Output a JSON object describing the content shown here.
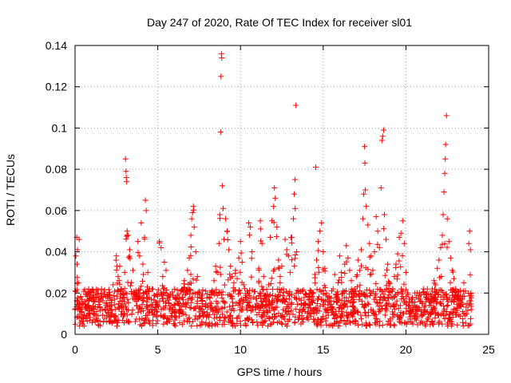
{
  "chart_data": {
    "type": "scatter",
    "title": "Day 247 of 2020, Rate Of TEC Index for receiver sl01",
    "xlabel": "GPS time / hours",
    "ylabel": "ROTI / TECUs",
    "xlim": [
      0,
      25
    ],
    "ylim": [
      0,
      0.14
    ],
    "xticks": [
      0,
      5,
      10,
      15,
      20,
      25
    ],
    "xtick_labels": [
      "0",
      "5",
      "10",
      "15",
      "20",
      "25"
    ],
    "yticks": [
      0,
      0.02,
      0.04,
      0.06,
      0.08,
      0.1,
      0.12,
      0.14
    ],
    "ytick_labels": [
      "0",
      "0.02",
      "0.04",
      "0.06",
      "0.08",
      "0.1",
      "0.12",
      "0.14"
    ],
    "grid": true,
    "marker": "+",
    "color": "#ff0000",
    "series": [
      {
        "name": "ROTI",
        "points": [
          [
            0.0,
            0.012
          ],
          [
            0.05,
            0.038
          ],
          [
            0.1,
            0.047
          ],
          [
            0.12,
            0.034
          ],
          [
            0.15,
            0.041
          ],
          [
            0.2,
            0.025
          ],
          [
            0.25,
            0.046
          ],
          [
            0.3,
            0.015
          ],
          [
            0.4,
            0.011
          ],
          [
            0.5,
            0.008
          ],
          [
            0.6,
            0.013
          ],
          [
            0.7,
            0.009
          ],
          [
            0.8,
            0.014
          ],
          [
            0.9,
            0.01
          ],
          [
            1.0,
            0.012
          ],
          [
            1.1,
            0.007
          ],
          [
            1.2,
            0.016
          ],
          [
            1.3,
            0.011
          ],
          [
            1.4,
            0.009
          ],
          [
            1.5,
            0.013
          ],
          [
            1.6,
            0.022
          ],
          [
            1.7,
            0.018
          ],
          [
            1.8,
            0.012
          ],
          [
            1.9,
            0.015
          ],
          [
            2.0,
            0.01
          ],
          [
            2.1,
            0.019
          ],
          [
            2.2,
            0.014
          ],
          [
            2.3,
            0.024
          ],
          [
            2.4,
            0.017
          ],
          [
            2.5,
            0.038
          ],
          [
            2.6,
            0.028
          ],
          [
            2.7,
            0.033
          ],
          [
            2.8,
            0.022
          ],
          [
            2.9,
            0.018
          ],
          [
            3.0,
            0.03
          ],
          [
            3.05,
            0.085
          ],
          [
            3.08,
            0.079
          ],
          [
            3.1,
            0.076
          ],
          [
            3.12,
            0.074
          ],
          [
            3.15,
            0.05
          ],
          [
            3.2,
            0.048
          ],
          [
            3.3,
            0.041
          ],
          [
            3.4,
            0.025
          ],
          [
            3.5,
            0.031
          ],
          [
            3.6,
            0.02
          ],
          [
            3.7,
            0.016
          ],
          [
            3.8,
            0.045
          ],
          [
            3.9,
            0.038
          ],
          [
            4.0,
            0.054
          ],
          [
            4.1,
            0.034
          ],
          [
            4.2,
            0.047
          ],
          [
            4.25,
            0.065
          ],
          [
            4.3,
            0.06
          ],
          [
            4.4,
            0.03
          ],
          [
            4.5,
            0.022
          ],
          [
            4.6,
            0.017
          ],
          [
            4.7,
            0.012
          ],
          [
            4.8,
            0.01
          ],
          [
            4.9,
            0.013
          ],
          [
            5.0,
            0.014
          ],
          [
            5.1,
            0.045
          ],
          [
            5.2,
            0.042
          ],
          [
            5.3,
            0.028
          ],
          [
            5.4,
            0.035
          ],
          [
            5.5,
            0.031
          ],
          [
            5.6,
            0.019
          ],
          [
            5.7,
            0.012
          ],
          [
            5.8,
            0.009
          ],
          [
            5.9,
            0.013
          ],
          [
            6.0,
            0.011
          ],
          [
            6.1,
            0.008
          ],
          [
            6.2,
            0.015
          ],
          [
            6.3,
            0.012
          ],
          [
            6.4,
            0.021
          ],
          [
            6.5,
            0.018
          ],
          [
            6.6,
            0.026
          ],
          [
            6.7,
            0.015
          ],
          [
            6.8,
            0.031
          ],
          [
            6.9,
            0.037
          ],
          [
            7.0,
            0.048
          ],
          [
            7.05,
            0.056
          ],
          [
            7.1,
            0.059
          ],
          [
            7.15,
            0.062
          ],
          [
            7.2,
            0.052
          ],
          [
            7.3,
            0.04
          ],
          [
            7.4,
            0.028
          ],
          [
            7.5,
            0.02
          ],
          [
            7.6,
            0.012
          ],
          [
            7.7,
            0.016
          ],
          [
            7.8,
            0.011
          ],
          [
            7.9,
            0.014
          ],
          [
            8.0,
            0.009
          ],
          [
            8.1,
            0.018
          ],
          [
            8.2,
            0.013
          ],
          [
            8.3,
            0.021
          ],
          [
            8.4,
            0.026
          ],
          [
            8.5,
            0.033
          ],
          [
            8.6,
            0.03
          ],
          [
            8.7,
            0.044
          ],
          [
            8.75,
            0.058
          ],
          [
            8.8,
            0.098
          ],
          [
            8.82,
            0.125
          ],
          [
            8.85,
            0.136
          ],
          [
            8.87,
            0.134
          ],
          [
            8.9,
            0.072
          ],
          [
            8.95,
            0.061
          ],
          [
            9.0,
            0.046
          ],
          [
            9.1,
            0.056
          ],
          [
            9.2,
            0.05
          ],
          [
            9.3,
            0.041
          ],
          [
            9.4,
            0.033
          ],
          [
            9.5,
            0.028
          ],
          [
            9.6,
            0.025
          ],
          [
            9.7,
            0.031
          ],
          [
            9.8,
            0.027
          ],
          [
            9.9,
            0.037
          ],
          [
            10.0,
            0.045
          ],
          [
            10.1,
            0.035
          ],
          [
            10.2,
            0.024
          ],
          [
            10.3,
            0.018
          ],
          [
            10.4,
            0.021
          ],
          [
            10.5,
            0.054
          ],
          [
            10.6,
            0.052
          ],
          [
            10.7,
            0.04
          ],
          [
            10.8,
            0.018
          ],
          [
            10.9,
            0.012
          ],
          [
            11.0,
            0.015
          ],
          [
            11.1,
            0.032
          ],
          [
            11.2,
            0.055
          ],
          [
            11.3,
            0.044
          ],
          [
            11.4,
            0.028
          ],
          [
            11.5,
            0.019
          ],
          [
            11.6,
            0.017
          ],
          [
            11.7,
            0.024
          ],
          [
            11.8,
            0.047
          ],
          [
            11.9,
            0.055
          ],
          [
            12.0,
            0.062
          ],
          [
            12.05,
            0.071
          ],
          [
            12.1,
            0.066
          ],
          [
            12.2,
            0.052
          ],
          [
            12.3,
            0.036
          ],
          [
            12.4,
            0.028
          ],
          [
            12.5,
            0.033
          ],
          [
            12.6,
            0.022
          ],
          [
            12.7,
            0.046
          ],
          [
            12.8,
            0.041
          ],
          [
            12.9,
            0.038
          ],
          [
            13.0,
            0.03
          ],
          [
            13.1,
            0.047
          ],
          [
            13.2,
            0.056
          ],
          [
            13.25,
            0.068
          ],
          [
            13.3,
            0.075
          ],
          [
            13.35,
            0.111
          ],
          [
            13.4,
            0.04
          ],
          [
            13.5,
            0.02
          ],
          [
            13.6,
            0.012
          ],
          [
            13.7,
            0.009
          ],
          [
            13.8,
            0.014
          ],
          [
            13.9,
            0.011
          ],
          [
            14.0,
            0.008
          ],
          [
            14.1,
            0.013
          ],
          [
            14.2,
            0.01
          ],
          [
            14.3,
            0.016
          ],
          [
            14.4,
            0.012
          ],
          [
            14.5,
            0.029
          ],
          [
            14.55,
            0.081
          ],
          [
            14.6,
            0.036
          ],
          [
            14.7,
            0.045
          ],
          [
            14.8,
            0.05
          ],
          [
            14.9,
            0.054
          ],
          [
            15.0,
            0.04
          ],
          [
            15.1,
            0.032
          ],
          [
            15.2,
            0.02
          ],
          [
            15.3,
            0.012
          ],
          [
            15.4,
            0.016
          ],
          [
            15.5,
            0.013
          ],
          [
            15.6,
            0.022
          ],
          [
            15.7,
            0.029
          ],
          [
            15.8,
            0.019
          ],
          [
            15.9,
            0.025
          ],
          [
            16.0,
            0.038
          ],
          [
            16.1,
            0.03
          ],
          [
            16.2,
            0.021
          ],
          [
            16.3,
            0.034
          ],
          [
            16.4,
            0.043
          ],
          [
            16.5,
            0.037
          ],
          [
            16.6,
            0.031
          ],
          [
            16.7,
            0.026
          ],
          [
            16.8,
            0.018
          ],
          [
            16.9,
            0.022
          ],
          [
            17.0,
            0.028
          ],
          [
            17.1,
            0.036
          ],
          [
            17.2,
            0.031
          ],
          [
            17.3,
            0.041
          ],
          [
            17.4,
            0.056
          ],
          [
            17.45,
            0.068
          ],
          [
            17.5,
            0.091
          ],
          [
            17.52,
            0.083
          ],
          [
            17.55,
            0.07
          ],
          [
            17.6,
            0.062
          ],
          [
            17.7,
            0.053
          ],
          [
            17.8,
            0.044
          ],
          [
            17.9,
            0.038
          ],
          [
            18.0,
            0.031
          ],
          [
            18.1,
            0.04
          ],
          [
            18.2,
            0.057
          ],
          [
            18.3,
            0.05
          ],
          [
            18.4,
            0.042
          ],
          [
            18.5,
            0.071
          ],
          [
            18.55,
            0.094
          ],
          [
            18.6,
            0.096
          ],
          [
            18.65,
            0.099
          ],
          [
            18.7,
            0.058
          ],
          [
            18.8,
            0.046
          ],
          [
            18.9,
            0.034
          ],
          [
            19.0,
            0.025
          ],
          [
            19.1,
            0.018
          ],
          [
            19.2,
            0.022
          ],
          [
            19.3,
            0.028
          ],
          [
            19.4,
            0.034
          ],
          [
            19.5,
            0.039
          ],
          [
            19.6,
            0.047
          ],
          [
            19.7,
            0.049
          ],
          [
            19.8,
            0.055
          ],
          [
            19.9,
            0.044
          ],
          [
            20.0,
            0.03
          ],
          [
            20.1,
            0.02
          ],
          [
            20.2,
            0.014
          ],
          [
            20.3,
            0.01
          ],
          [
            20.4,
            0.012
          ],
          [
            20.5,
            0.009
          ],
          [
            20.6,
            0.011
          ],
          [
            20.7,
            0.008
          ],
          [
            20.8,
            0.013
          ],
          [
            20.9,
            0.016
          ],
          [
            21.0,
            0.015
          ],
          [
            21.1,
            0.012
          ],
          [
            21.2,
            0.018
          ],
          [
            21.3,
            0.011
          ],
          [
            21.4,
            0.014
          ],
          [
            21.5,
            0.019
          ],
          [
            21.6,
            0.022
          ],
          [
            21.7,
            0.026
          ],
          [
            21.8,
            0.024
          ],
          [
            21.9,
            0.032
          ],
          [
            22.0,
            0.036
          ],
          [
            22.1,
            0.042
          ],
          [
            22.2,
            0.048
          ],
          [
            22.25,
            0.058
          ],
          [
            22.3,
            0.069
          ],
          [
            22.35,
            0.078
          ],
          [
            22.38,
            0.085
          ],
          [
            22.4,
            0.092
          ],
          [
            22.45,
            0.106
          ],
          [
            22.5,
            0.056
          ],
          [
            22.6,
            0.045
          ],
          [
            22.7,
            0.037
          ],
          [
            22.8,
            0.031
          ],
          [
            22.9,
            0.027
          ],
          [
            23.0,
            0.022
          ],
          [
            23.1,
            0.018
          ],
          [
            23.2,
            0.015
          ],
          [
            23.3,
            0.014
          ],
          [
            23.4,
            0.017
          ],
          [
            23.5,
            0.025
          ],
          [
            23.6,
            0.021
          ],
          [
            23.7,
            0.015
          ],
          [
            23.8,
            0.044
          ],
          [
            23.85,
            0.05
          ],
          [
            23.9,
            0.041
          ],
          [
            23.95,
            0.012
          ]
        ]
      }
    ],
    "background_band": {
      "description_values": "dense cluster of points",
      "y_range": [
        0.004,
        0.022
      ],
      "count": 1600
    }
  }
}
